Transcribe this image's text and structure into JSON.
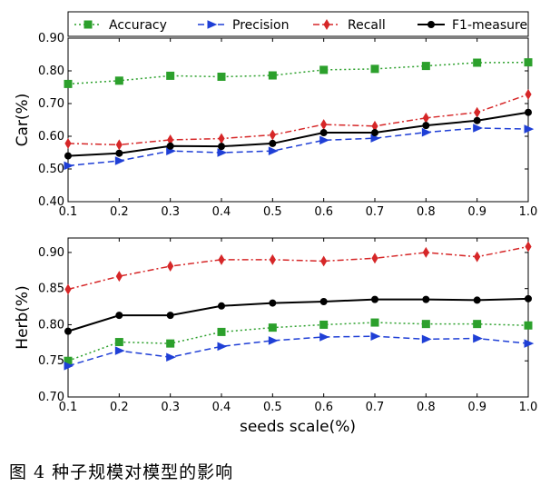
{
  "legend": {
    "items": [
      {
        "label": "Accuracy"
      },
      {
        "label": "Precision"
      },
      {
        "label": "Recall"
      },
      {
        "label": "F1-measure"
      }
    ]
  },
  "xlabel": "seeds scale(%)",
  "caption": "图 4  种子规模对模型的影响",
  "chart_data": [
    {
      "type": "line",
      "ylabel": "Car(%)",
      "x": [
        0.1,
        0.2,
        0.3,
        0.4,
        0.5,
        0.6,
        0.7,
        0.8,
        0.9,
        1.0
      ],
      "xticks": [
        "0.1",
        "0.2",
        "0.3",
        "0.4",
        "0.5",
        "0.6",
        "0.7",
        "0.8",
        "0.9",
        "1.0"
      ],
      "ylim": [
        0.4,
        0.9
      ],
      "yticks": [
        "0.40",
        "0.50",
        "0.60",
        "0.70",
        "0.80",
        "0.90"
      ],
      "xlim": [
        0.1,
        1.0
      ],
      "series": [
        {
          "name": "Accuracy",
          "color": "#2ca02c",
          "marker": "square",
          "dash": "dotted",
          "values": [
            0.76,
            0.77,
            0.785,
            0.782,
            0.786,
            0.803,
            0.806,
            0.815,
            0.825,
            0.826
          ]
        },
        {
          "name": "Precision",
          "color": "#1f3fd6",
          "marker": "triangle",
          "dash": "dashed",
          "values": [
            0.51,
            0.525,
            0.555,
            0.55,
            0.555,
            0.588,
            0.594,
            0.612,
            0.625,
            0.622
          ]
        },
        {
          "name": "Recall",
          "color": "#d62728",
          "marker": "diamond",
          "dash": "dashdot",
          "values": [
            0.578,
            0.574,
            0.589,
            0.593,
            0.604,
            0.636,
            0.631,
            0.656,
            0.673,
            0.728
          ]
        },
        {
          "name": "F1-measure",
          "color": "#000000",
          "marker": "circle",
          "dash": "solid",
          "values": [
            0.54,
            0.548,
            0.57,
            0.569,
            0.578,
            0.611,
            0.611,
            0.633,
            0.648,
            0.673
          ]
        }
      ]
    },
    {
      "type": "line",
      "ylabel": "Herb(%)",
      "x": [
        0.1,
        0.2,
        0.3,
        0.4,
        0.5,
        0.6,
        0.7,
        0.8,
        0.9,
        1.0
      ],
      "xticks": [
        "0.1",
        "0.2",
        "0.3",
        "0.4",
        "0.5",
        "0.6",
        "0.7",
        "0.8",
        "0.9",
        "1.0"
      ],
      "ylim": [
        0.7,
        0.92
      ],
      "yticks": [
        "0.70",
        "0.75",
        "0.80",
        "0.85",
        "0.90"
      ],
      "xlim": [
        0.1,
        1.0
      ],
      "series": [
        {
          "name": "Accuracy",
          "color": "#2ca02c",
          "marker": "square",
          "dash": "dotted",
          "values": [
            0.75,
            0.776,
            0.774,
            0.79,
            0.796,
            0.8,
            0.803,
            0.801,
            0.801,
            0.799
          ]
        },
        {
          "name": "Precision",
          "color": "#1f3fd6",
          "marker": "triangle",
          "dash": "dashed",
          "values": [
            0.743,
            0.764,
            0.755,
            0.77,
            0.778,
            0.783,
            0.784,
            0.78,
            0.781,
            0.774
          ]
        },
        {
          "name": "Recall",
          "color": "#d62728",
          "marker": "diamond",
          "dash": "dashdot",
          "values": [
            0.849,
            0.867,
            0.881,
            0.89,
            0.89,
            0.888,
            0.892,
            0.9,
            0.894,
            0.908
          ]
        },
        {
          "name": "F1-measure",
          "color": "#000000",
          "marker": "circle",
          "dash": "solid",
          "values": [
            0.791,
            0.813,
            0.813,
            0.826,
            0.83,
            0.832,
            0.835,
            0.835,
            0.834,
            0.836
          ]
        }
      ]
    }
  ]
}
